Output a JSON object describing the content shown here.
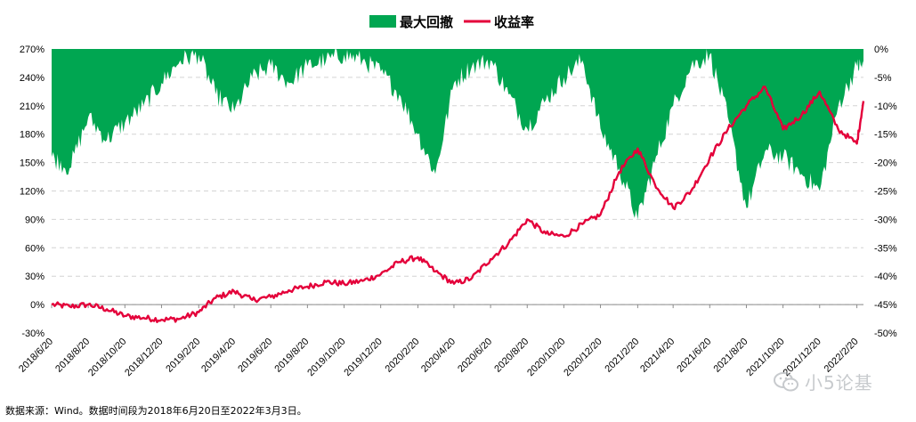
{
  "chart_data": {
    "type": "line",
    "legend": {
      "position": "top-center",
      "items": [
        {
          "name": "最大回撤",
          "kind": "area",
          "color": "#00A651"
        },
        {
          "name": "收益率",
          "kind": "line",
          "color": "#E4003A"
        }
      ]
    },
    "left_axis": {
      "ylim": [
        -30,
        270
      ],
      "ticks": [
        "270%",
        "240%",
        "210%",
        "180%",
        "150%",
        "120%",
        "90%",
        "60%",
        "30%",
        "0%",
        "-30%"
      ]
    },
    "right_axis": {
      "ylim": [
        -50,
        0
      ],
      "ticks": [
        "0%",
        "-5%",
        "-10%",
        "-15%",
        "-20%",
        "-25%",
        "-30%",
        "-35%",
        "-40%",
        "-45%",
        "-50%"
      ]
    },
    "x_ticks": [
      "2018/6/20",
      "2018/8/20",
      "2018/10/20",
      "2018/12/20",
      "2019/2/20",
      "2019/4/20",
      "2019/6/20",
      "2019/8/20",
      "2019/10/20",
      "2019/12/20",
      "2020/2/20",
      "2020/4/20",
      "2020/6/20",
      "2020/8/20",
      "2020/10/20",
      "2020/12/20",
      "2021/2/20",
      "2021/4/20",
      "2021/6/20",
      "2021/8/20",
      "2021/10/20",
      "2021/12/20",
      "2022/2/20"
    ],
    "grid": true,
    "series": [
      {
        "name": "收益率",
        "axis": "left",
        "x": [
          "2018/6/20",
          "2018/7/20",
          "2018/8/20",
          "2018/9/20",
          "2018/10/20",
          "2018/11/20",
          "2018/12/20",
          "2019/1/20",
          "2019/2/20",
          "2019/3/20",
          "2019/4/20",
          "2019/5/20",
          "2019/6/20",
          "2019/7/20",
          "2019/8/20",
          "2019/9/20",
          "2019/10/20",
          "2019/11/20",
          "2019/12/20",
          "2020/1/20",
          "2020/2/20",
          "2020/3/20",
          "2020/4/20",
          "2020/5/20",
          "2020/6/20",
          "2020/7/20",
          "2020/8/20",
          "2020/9/20",
          "2020/10/20",
          "2020/11/20",
          "2020/12/20",
          "2021/1/20",
          "2021/2/20",
          "2021/3/20",
          "2021/4/20",
          "2021/5/20",
          "2021/6/20",
          "2021/7/20",
          "2021/8/20",
          "2021/9/20",
          "2021/10/20",
          "2021/11/20",
          "2021/12/20",
          "2022/1/20",
          "2022/2/20",
          "2022/3/3"
        ],
        "values": [
          0,
          -2,
          0,
          -5,
          -12,
          -14,
          -16,
          -15,
          -8,
          7,
          14,
          5,
          8,
          15,
          19,
          24,
          22,
          25,
          32,
          45,
          50,
          35,
          22,
          28,
          48,
          65,
          90,
          75,
          72,
          85,
          95,
          140,
          165,
          128,
          102,
          120,
          155,
          185,
          210,
          230,
          185,
          200,
          225,
          185,
          170,
          215
        ]
      },
      {
        "name": "最大回撤",
        "axis": "right",
        "x": [
          "2018/6/20",
          "2018/7/20",
          "2018/8/20",
          "2018/9/20",
          "2018/10/20",
          "2018/11/20",
          "2018/12/20",
          "2019/1/20",
          "2019/2/20",
          "2019/3/20",
          "2019/4/20",
          "2019/5/20",
          "2019/6/20",
          "2019/7/20",
          "2019/8/20",
          "2019/9/20",
          "2019/10/20",
          "2019/11/20",
          "2019/12/20",
          "2020/1/20",
          "2020/2/20",
          "2020/3/20",
          "2020/4/20",
          "2020/5/20",
          "2020/6/20",
          "2020/7/20",
          "2020/8/20",
          "2020/9/20",
          "2020/10/20",
          "2020/11/20",
          "2020/12/20",
          "2021/1/20",
          "2021/2/20",
          "2021/3/20",
          "2021/4/20",
          "2021/5/20",
          "2021/6/20",
          "2021/7/20",
          "2021/8/20",
          "2021/9/20",
          "2021/10/20",
          "2021/11/20",
          "2021/12/20",
          "2022/1/20",
          "2022/2/20",
          "2022/3/3"
        ],
        "values": [
          -19,
          -21,
          -12,
          -16,
          -13,
          -10,
          -6,
          -2,
          -1,
          -8,
          -11,
          -5,
          -3,
          -6,
          -3,
          -2,
          -1,
          -2,
          -4,
          -8,
          -15,
          -22,
          -6,
          -3,
          -2,
          -8,
          -14,
          -9,
          -5,
          -2,
          -14,
          -21,
          -30,
          -20,
          -10,
          -3,
          -1,
          -12,
          -28,
          -18,
          -19,
          -22,
          -25,
          -10,
          -3,
          -3
        ]
      }
    ],
    "source_note": "数据来源：Wind。数据时间段为2018年6月20日至2022年3月3日。"
  },
  "watermark": {
    "text": "小5论基",
    "icon": "wechat-icon"
  }
}
